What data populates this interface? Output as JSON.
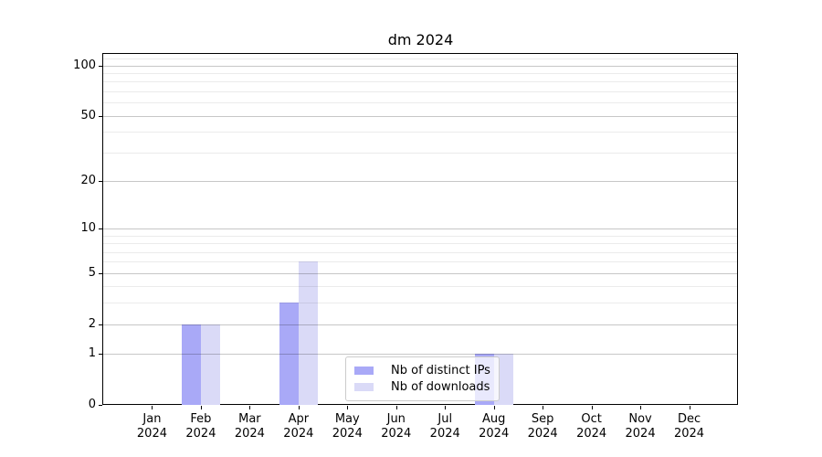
{
  "chart_data": {
    "type": "bar",
    "title": "dm 2024",
    "x_categories": [
      "Jan 2024",
      "Feb 2024",
      "Mar 2024",
      "Apr 2024",
      "May 2024",
      "Jun 2024",
      "Jul 2024",
      "Aug 2024",
      "Sep 2024",
      "Oct 2024",
      "Nov 2024",
      "Dec 2024"
    ],
    "series": [
      {
        "name": "Nb of distinct IPs",
        "color": "#a9a9f7",
        "values": [
          0,
          2,
          0,
          3,
          0,
          0,
          0,
          1,
          0,
          0,
          0,
          0
        ]
      },
      {
        "name": "Nb of downloads",
        "color": "#dadaf7",
        "values": [
          0,
          2,
          0,
          6,
          0,
          0,
          0,
          1,
          0,
          0,
          0,
          0
        ]
      }
    ],
    "xlabel": "",
    "ylabel": "",
    "y_scale": "log10(1+y)",
    "y_ticks": [
      0,
      1,
      2,
      5,
      10,
      20,
      50,
      100
    ],
    "y_major_gridlines": [
      1,
      2,
      5,
      10,
      20,
      50,
      100
    ],
    "y_minor_gridlines": [
      3,
      4,
      6,
      7,
      8,
      9,
      30,
      40,
      60,
      70,
      80,
      90,
      110
    ],
    "ylim": [
      0,
      117
    ],
    "grid": true,
    "legend_position": "lower center"
  },
  "colors": {
    "background": "#ffffff",
    "axis": "#000000",
    "bar_distinct_ips": "#a9a9f7",
    "bar_downloads": "#dadaf7",
    "legend_border": "#cccccc"
  }
}
